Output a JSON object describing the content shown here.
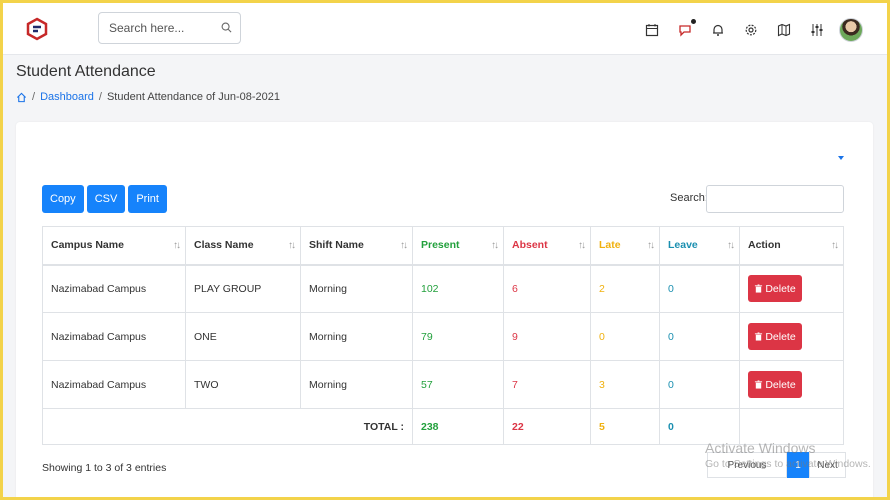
{
  "header": {
    "search_placeholder": "Search here...",
    "icons": [
      "calendar-icon",
      "chat-icon",
      "bell-icon",
      "gear-icon",
      "map-icon",
      "sliders-icon"
    ]
  },
  "page": {
    "title": "Student Attendance",
    "breadcrumb": {
      "home_icon": "home-icon",
      "dashboard": "Dashboard",
      "separator": "/",
      "current": "Student Attendance of Jun-08-2021"
    }
  },
  "toolbar": {
    "copy": "Copy",
    "csv": "CSV",
    "print": "Print",
    "search_label": "Search:"
  },
  "table": {
    "columns": [
      "Campus Name",
      "Class Name",
      "Shift Name",
      "Present",
      "Absent",
      "Late",
      "Leave",
      "Action"
    ],
    "rows": [
      {
        "campus": "Nazimabad Campus",
        "class": "PLAY GROUP",
        "shift": "Morning",
        "present": "102",
        "absent": "6",
        "late": "2",
        "leave": "0",
        "action": "Delete"
      },
      {
        "campus": "Nazimabad Campus",
        "class": "ONE",
        "shift": "Morning",
        "present": "79",
        "absent": "9",
        "late": "0",
        "leave": "0",
        "action": "Delete"
      },
      {
        "campus": "Nazimabad Campus",
        "class": "TWO",
        "shift": "Morning",
        "present": "57",
        "absent": "7",
        "late": "3",
        "leave": "0",
        "action": "Delete"
      }
    ],
    "total": {
      "label": "TOTAL :",
      "present": "238",
      "absent": "22",
      "late": "5",
      "leave": "0"
    }
  },
  "footer": {
    "showing": "Showing 1 to 3 of 3 entries",
    "pagination": {
      "previous": "Previous",
      "current": "1",
      "next": "Next"
    }
  },
  "watermark": {
    "line1": "Activate Windows",
    "line2": "Go to Settings to activate Windows."
  },
  "colors": {
    "primary": "#1683fb",
    "danger": "#dc3545",
    "present": "#22a03c",
    "late": "#f0b10f",
    "leave": "#1a8fb0"
  }
}
